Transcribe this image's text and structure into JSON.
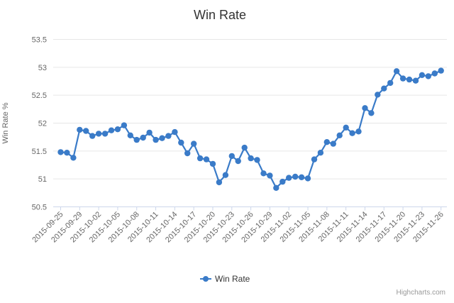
{
  "chart_data": {
    "type": "line",
    "title": "Win Rate",
    "ylabel": "Win Rate %",
    "xlabel": "",
    "ylim": [
      50.5,
      53.5
    ],
    "yticks": [
      50.5,
      51,
      51.5,
      52,
      52.5,
      53,
      53.5
    ],
    "grid": true,
    "legend_position": "bottom-center",
    "x_tick_every": 3,
    "x_tick_labels": [
      "2015-09-25",
      "2015-09-29",
      "2015-10-02",
      "2015-10-05",
      "2015-10-08",
      "2015-10-11",
      "2015-10-14",
      "2015-10-17",
      "2015-10-20",
      "2015-10-23",
      "2015-10-26",
      "2015-10-29",
      "2015-11-02",
      "2015-11-05",
      "2015-11-08",
      "2015-11-11",
      "2015-11-14",
      "2015-11-17",
      "2015-11-20",
      "2015-11-23",
      "2015-11-26"
    ],
    "series": [
      {
        "name": "Win Rate",
        "color": "#3a7bc8",
        "values": [
          51.48,
          51.47,
          51.38,
          51.88,
          51.86,
          51.77,
          51.81,
          51.81,
          51.87,
          51.89,
          51.96,
          51.78,
          51.7,
          51.74,
          51.83,
          51.7,
          51.73,
          51.77,
          51.84,
          51.65,
          51.46,
          51.63,
          51.37,
          51.35,
          51.27,
          50.94,
          51.07,
          51.41,
          51.32,
          51.56,
          51.37,
          51.34,
          51.1,
          51.06,
          50.84,
          50.95,
          51.02,
          51.04,
          51.03,
          51.01,
          51.35,
          51.47,
          51.66,
          51.63,
          51.78,
          51.92,
          51.82,
          51.85,
          52.27,
          52.18,
          52.51,
          52.62,
          52.72,
          52.93,
          52.8,
          52.78,
          52.76,
          52.86,
          52.84,
          52.89,
          52.94
        ]
      }
    ],
    "credit": "Highcharts.com"
  },
  "colors": {
    "series": "#3a7bc8",
    "gridline": "#e6e6e6",
    "axis_line": "#ccd6eb",
    "axis_label": "#666666",
    "title_text": "#333333",
    "credit_text": "#999999"
  }
}
